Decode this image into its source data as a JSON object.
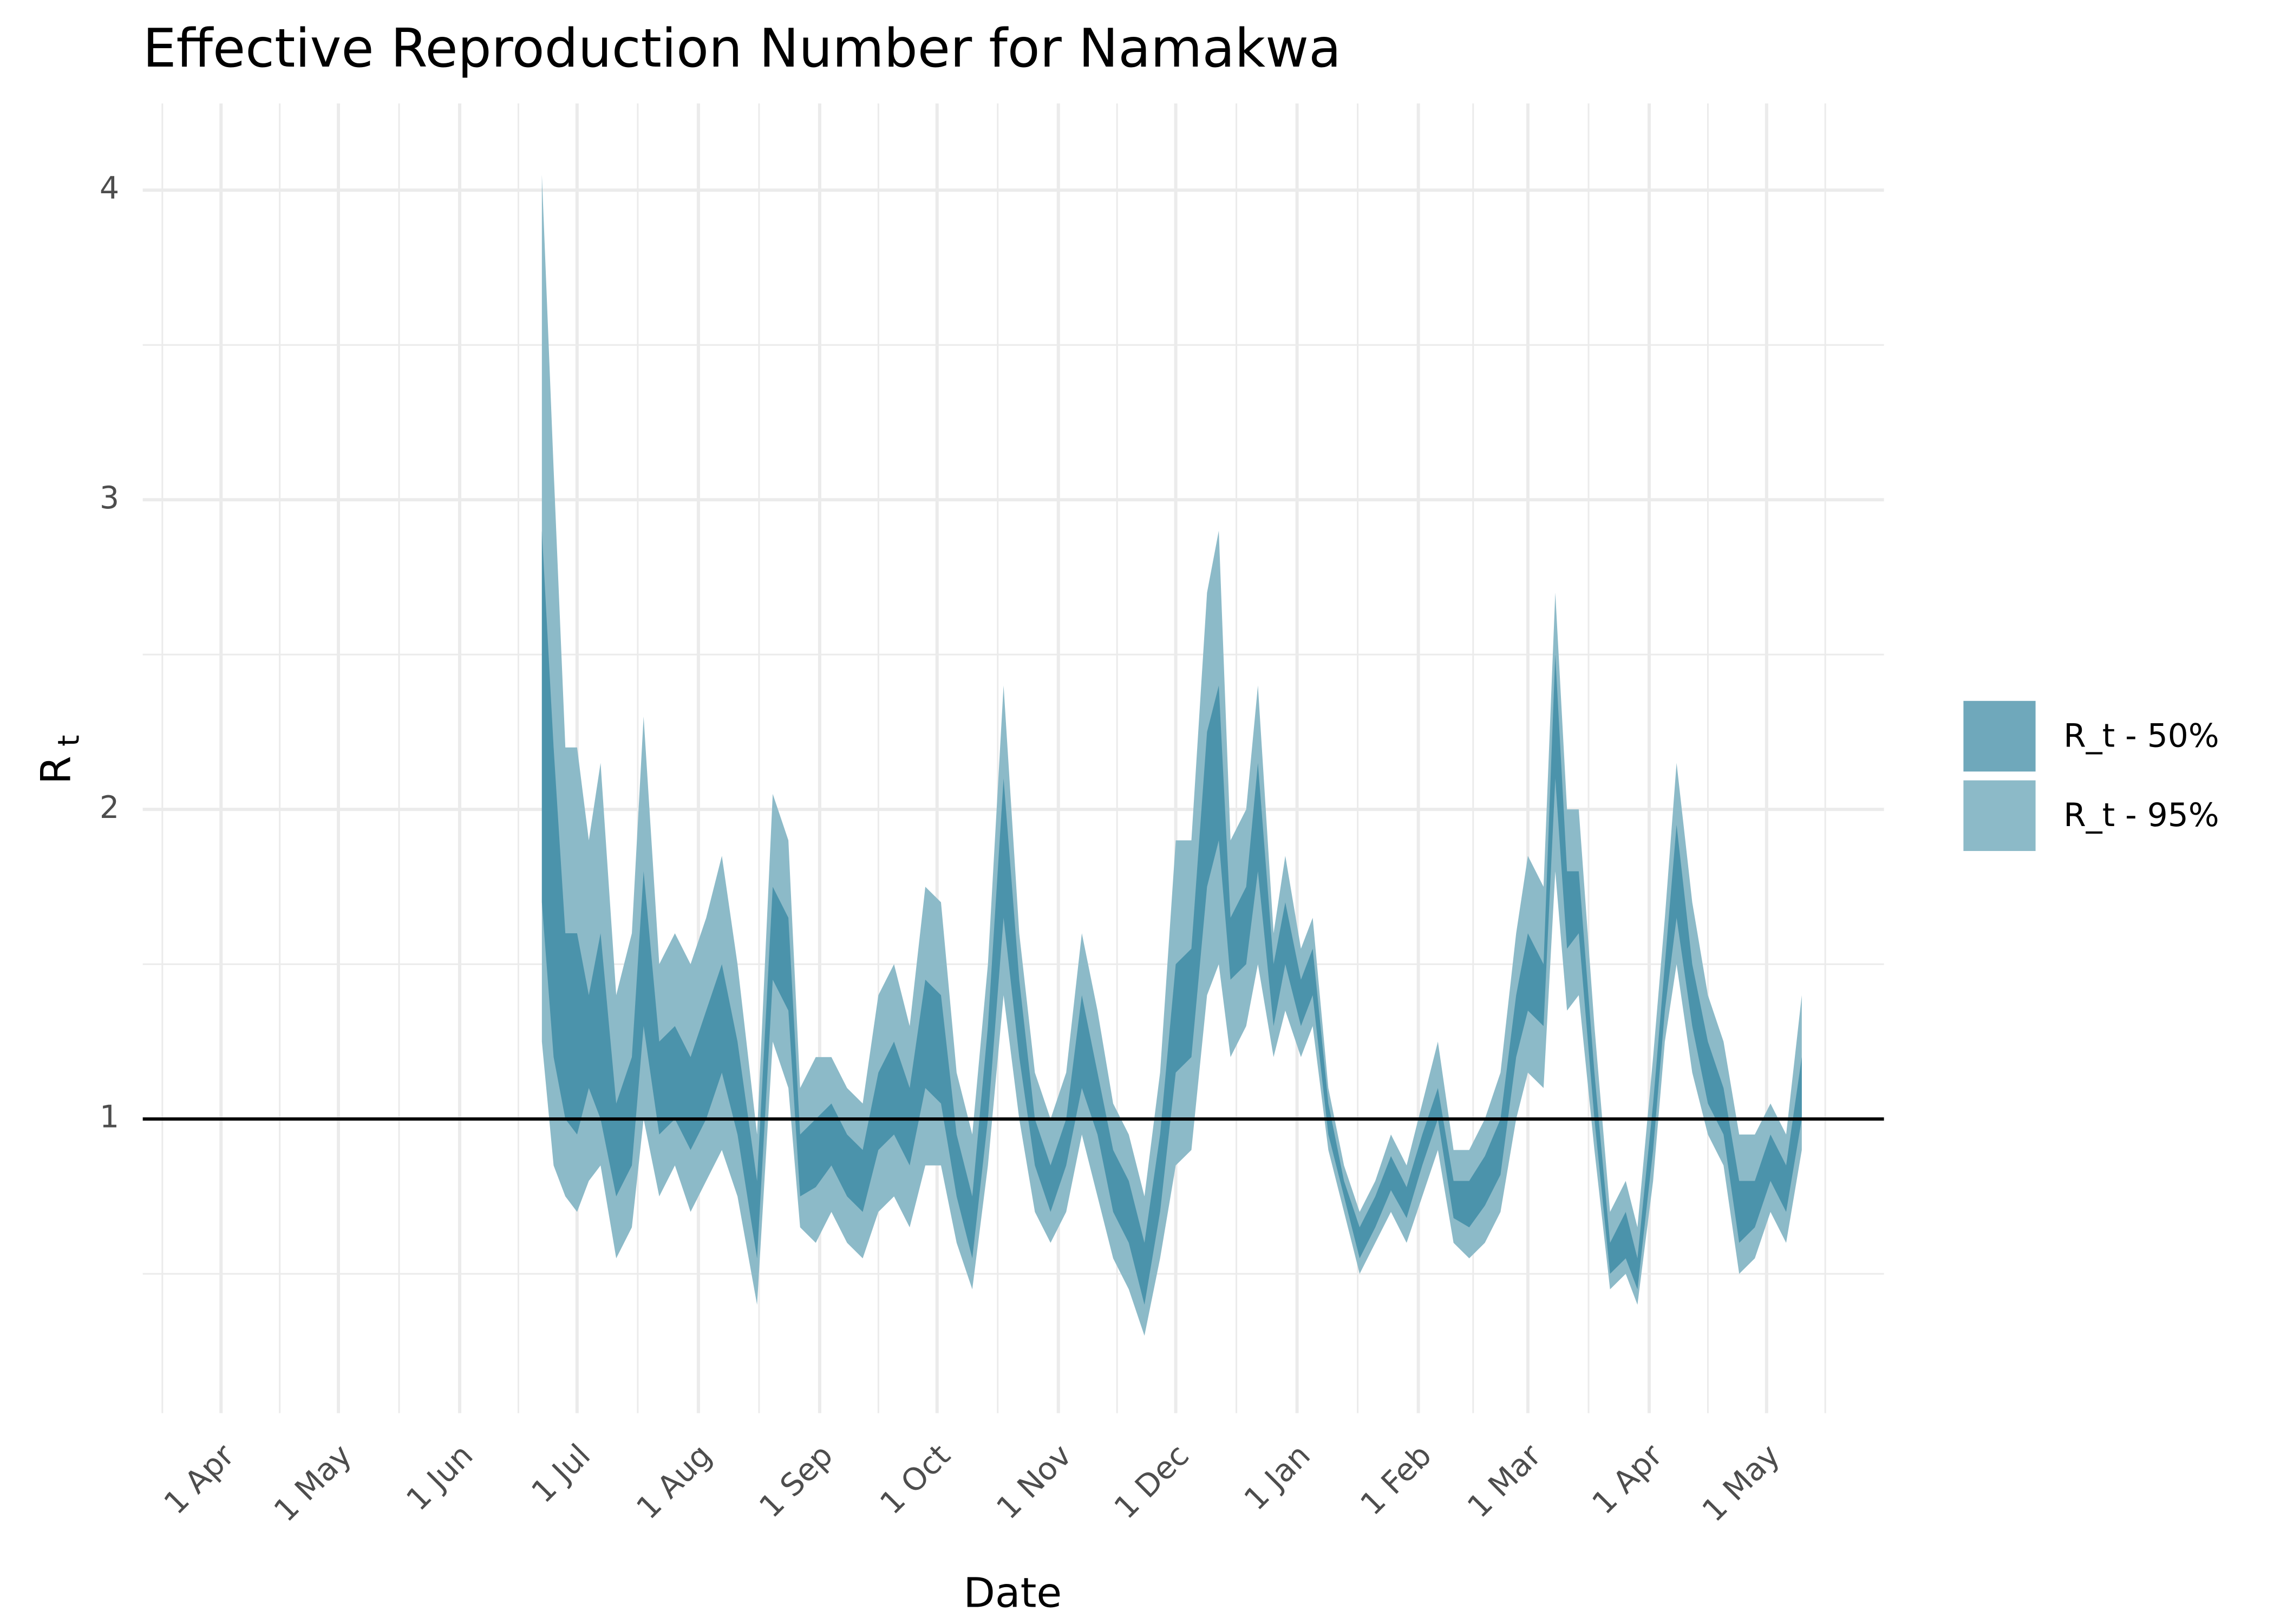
{
  "chart_data": {
    "type": "ribbon",
    "title": "Effective Reproduction Number for Namakwa",
    "x_label": "Date",
    "y_label": "R",
    "y_label_subscript": "t",
    "x": [
      "22 Jun",
      "25 Jun",
      "28 Jun",
      "1 Jul",
      "4 Jul",
      "7 Jul",
      "11 Jul",
      "15 Jul",
      "18 Jul",
      "22 Jul",
      "26 Jul",
      "30 Jul",
      "3 Aug",
      "7 Aug",
      "11 Aug",
      "16 Aug",
      "20 Aug",
      "24 Aug",
      "27 Aug",
      "31 Aug",
      "4 Sep",
      "8 Sep",
      "12 Sep",
      "16 Sep",
      "20 Sep",
      "24 Sep",
      "28 Sep",
      "2 Oct",
      "6 Oct",
      "10 Oct",
      "14 Oct",
      "18 Oct",
      "22 Oct",
      "26 Oct",
      "30 Oct",
      "3 Nov",
      "7 Nov",
      "11 Nov",
      "15 Nov",
      "19 Nov",
      "23 Nov",
      "27 Nov",
      "1 Dec",
      "5 Dec",
      "9 Dec",
      "12 Dec",
      "15 Dec",
      "19 Dec",
      "22 Dec",
      "26 Dec",
      "29 Dec",
      "2 Jan",
      "5 Jan",
      "9 Jan",
      "13 Jan",
      "17 Jan",
      "21 Jan",
      "25 Jan",
      "29 Jan",
      "2 Feb",
      "6 Feb",
      "10 Feb",
      "14 Feb",
      "18 Feb",
      "22 Feb",
      "26 Feb",
      "1 Mar",
      "5 Mar",
      "8 Mar",
      "11 Mar",
      "14 Mar",
      "18 Mar",
      "22 Mar",
      "26 Mar",
      "29 Mar",
      "2 Apr",
      "5 Apr",
      "8 Apr",
      "12 Apr",
      "16 Apr",
      "20 Apr",
      "24 Apr",
      "28 Apr",
      "2 May",
      "6 May",
      "10 May"
    ],
    "series": [
      {
        "name": "R_t - 50%",
        "color": "#4b93ab",
        "legend_color": "#6fa8bb",
        "lower": [
          1.7,
          1.2,
          1.0,
          0.95,
          1.1,
          1.0,
          0.75,
          0.85,
          1.3,
          0.95,
          1.0,
          0.9,
          1.0,
          1.15,
          0.95,
          0.55,
          1.45,
          1.35,
          0.75,
          0.78,
          0.85,
          0.75,
          0.7,
          0.9,
          0.95,
          0.85,
          1.1,
          1.05,
          0.75,
          0.55,
          1.0,
          1.65,
          1.2,
          0.85,
          0.7,
          0.85,
          1.1,
          0.95,
          0.7,
          0.6,
          0.4,
          0.7,
          1.15,
          1.2,
          1.75,
          1.9,
          1.45,
          1.5,
          1.8,
          1.3,
          1.5,
          1.3,
          1.4,
          0.95,
          0.75,
          0.55,
          0.65,
          0.77,
          0.68,
          0.85,
          1.0,
          0.68,
          0.65,
          0.72,
          0.82,
          1.2,
          1.35,
          1.3,
          2.1,
          1.55,
          1.6,
          1.0,
          0.5,
          0.55,
          0.45,
          0.9,
          1.35,
          1.65,
          1.3,
          1.05,
          0.95,
          0.6,
          0.65,
          0.8,
          0.7,
          1.0
        ],
        "upper": [
          2.9,
          2.2,
          1.6,
          1.6,
          1.4,
          1.6,
          1.05,
          1.2,
          1.8,
          1.25,
          1.3,
          1.2,
          1.35,
          1.5,
          1.25,
          0.8,
          1.75,
          1.65,
          0.95,
          1.0,
          1.05,
          0.95,
          0.9,
          1.15,
          1.25,
          1.1,
          1.45,
          1.4,
          0.95,
          0.75,
          1.3,
          2.1,
          1.45,
          1.0,
          0.85,
          1.0,
          1.4,
          1.15,
          0.9,
          0.8,
          0.6,
          0.95,
          1.5,
          1.55,
          2.25,
          2.4,
          1.65,
          1.75,
          2.15,
          1.5,
          1.7,
          1.45,
          1.55,
          1.05,
          0.8,
          0.65,
          0.75,
          0.88,
          0.78,
          0.95,
          1.1,
          0.8,
          0.8,
          0.88,
          1.0,
          1.4,
          1.6,
          1.5,
          2.5,
          1.8,
          1.8,
          1.15,
          0.6,
          0.7,
          0.55,
          1.05,
          1.5,
          1.95,
          1.5,
          1.25,
          1.1,
          0.8,
          0.8,
          0.95,
          0.85,
          1.2
        ]
      },
      {
        "name": "R_t - 95%",
        "color": "#8cbac8",
        "legend_color": "#8cbac8",
        "lower": [
          1.25,
          0.85,
          0.75,
          0.7,
          0.8,
          0.85,
          0.55,
          0.65,
          1.0,
          0.75,
          0.85,
          0.7,
          0.8,
          0.9,
          0.75,
          0.4,
          1.25,
          1.1,
          0.65,
          0.6,
          0.7,
          0.6,
          0.55,
          0.7,
          0.75,
          0.65,
          0.85,
          0.85,
          0.6,
          0.45,
          0.85,
          1.4,
          1.0,
          0.7,
          0.6,
          0.7,
          0.95,
          0.75,
          0.55,
          0.45,
          0.3,
          0.55,
          0.85,
          0.9,
          1.4,
          1.5,
          1.2,
          1.3,
          1.5,
          1.2,
          1.35,
          1.2,
          1.3,
          0.9,
          0.7,
          0.5,
          0.6,
          0.7,
          0.6,
          0.75,
          0.9,
          0.6,
          0.55,
          0.6,
          0.7,
          1.0,
          1.15,
          1.1,
          1.8,
          1.35,
          1.4,
          0.9,
          0.45,
          0.5,
          0.4,
          0.8,
          1.25,
          1.5,
          1.15,
          0.95,
          0.85,
          0.5,
          0.55,
          0.7,
          0.6,
          0.9
        ],
        "upper": [
          4.05,
          3.1,
          2.2,
          2.2,
          1.9,
          2.15,
          1.4,
          1.6,
          2.3,
          1.5,
          1.6,
          1.5,
          1.65,
          1.85,
          1.5,
          0.95,
          2.05,
          1.9,
          1.1,
          1.2,
          1.2,
          1.1,
          1.05,
          1.4,
          1.5,
          1.3,
          1.75,
          1.7,
          1.15,
          0.95,
          1.5,
          2.4,
          1.6,
          1.15,
          1.0,
          1.15,
          1.6,
          1.35,
          1.05,
          0.95,
          0.75,
          1.15,
          1.9,
          1.9,
          2.7,
          2.9,
          1.9,
          2.0,
          2.4,
          1.6,
          1.85,
          1.55,
          1.65,
          1.1,
          0.85,
          0.7,
          0.8,
          0.95,
          0.85,
          1.05,
          1.25,
          0.9,
          0.9,
          1.0,
          1.15,
          1.6,
          1.85,
          1.75,
          2.7,
          2.0,
          2.0,
          1.3,
          0.7,
          0.8,
          0.65,
          1.2,
          1.65,
          2.15,
          1.7,
          1.4,
          1.25,
          0.95,
          0.95,
          1.05,
          0.95,
          1.4
        ]
      }
    ],
    "xlim": [
      "12 Mar",
      "31 May"
    ],
    "xticks": [
      "1 Apr",
      "1 May",
      "1 Jun",
      "1 Jul",
      "1 Aug",
      "1 Sep",
      "1 Oct",
      "1 Nov",
      "1 Dec",
      "1 Jan",
      "1 Feb",
      "1 Mar",
      "1 Apr",
      "1 May"
    ],
    "ylim": [
      0.05,
      4.28
    ],
    "yticks": [
      1,
      2,
      3,
      4
    ],
    "hline": 1,
    "grid": true,
    "legend_position": "right"
  }
}
